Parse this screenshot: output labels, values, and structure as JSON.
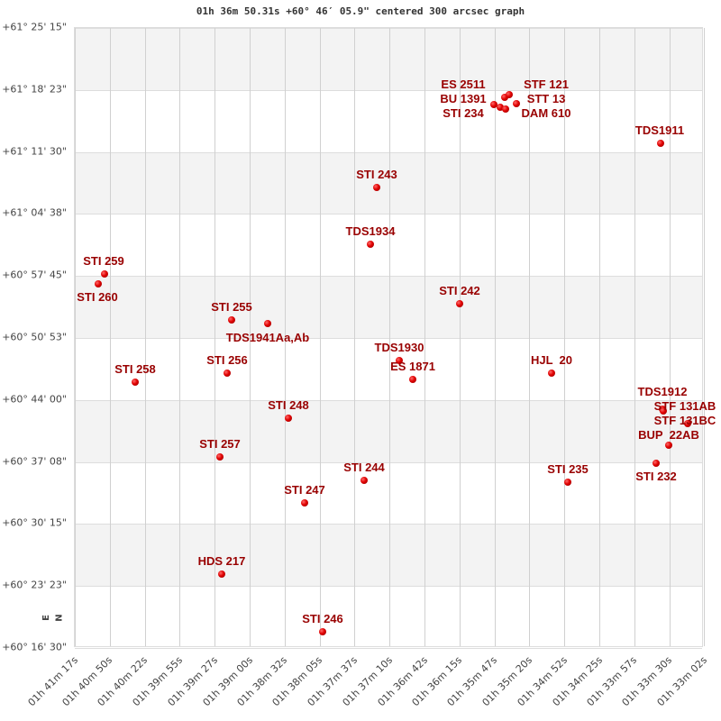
{
  "chart_data": {
    "type": "scatter",
    "title": "01h 36m 50.31s +60° 46′ 05.9\" centered 300 arcsec graph",
    "x_ticks": [
      "01h 41m 17s",
      "01h 40m 50s",
      "01h 40m 22s",
      "01h 39m 55s",
      "01h 39m 27s",
      "01h 39m 00s",
      "01h 38m 32s",
      "01h 38m 05s",
      "01h 37m 37s",
      "01h 37m 10s",
      "01h 36m 42s",
      "01h 36m 15s",
      "01h 35m 47s",
      "01h 35m 20s",
      "01h 34m 52s",
      "01h 34m 25s",
      "01h 33m 57s",
      "01h 33m 30s",
      "01h 33m 02s"
    ],
    "y_ticks": [
      "+61° 25' 15\"",
      "+61° 18' 23\"",
      "+61° 11' 30\"",
      "+61° 04' 38\"",
      "+60° 57' 45\"",
      "+60° 50' 53\"",
      "+60° 44' 00\"",
      "+60° 37' 08\"",
      "+60° 30' 15\"",
      "+60° 23' 23\"",
      "+60° 16' 30\""
    ],
    "direction_markers": {
      "north": "N",
      "east": "E"
    },
    "grid": true,
    "stars": [
      "TDS1911",
      "STI 243",
      "TDS1934",
      "STI 259",
      "STI 260",
      "STI 242",
      "STI 255",
      "TDS1941Aa,Ab",
      "TDS1930",
      "ES 1871",
      "HJL  20",
      "STI 258",
      "STI 256",
      "STI 248",
      "TDS1912",
      "STF 131AB",
      "STF 131BC",
      "BUP  22AB",
      "STI 232",
      "STI 257",
      "STI 244",
      "STI 235",
      "STI 247",
      "HDS 217",
      "STI 246",
      "ES 2511",
      "BU 1391",
      "STI 234",
      "STF 121",
      "STT 13",
      "DAM 610"
    ],
    "colors": {
      "marker": "#e00000",
      "label": "#990000",
      "band": "#f3f3f3",
      "grid": "#d0d0d0"
    }
  }
}
